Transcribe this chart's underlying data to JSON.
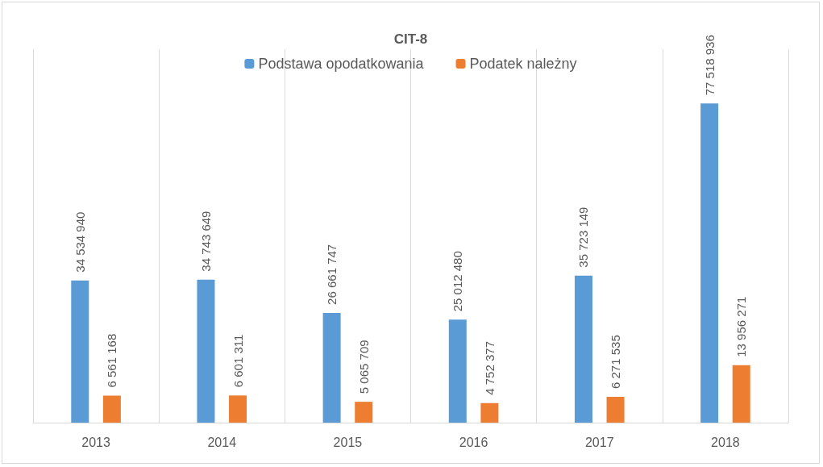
{
  "chart_data": {
    "type": "bar",
    "title": "CIT-8",
    "categories": [
      "2013",
      "2014",
      "2015",
      "2016",
      "2017",
      "2018"
    ],
    "series": [
      {
        "name": "Podstawa opodatkowania",
        "color": "#5b9bd5",
        "values": [
          34534940,
          34743649,
          26661747,
          25012480,
          35723149,
          77518936
        ],
        "value_labels": [
          "34 534 940",
          "34 743 649",
          "26 661 747",
          "25 012 480",
          "35 723 149",
          "77 518 936"
        ]
      },
      {
        "name": "Podatek należny",
        "color": "#ed7d31",
        "values": [
          6561168,
          6601311,
          5065709,
          4752377,
          6271535,
          13956271
        ],
        "value_labels": [
          "6 561 168",
          "6 601 311",
          "5 065 709",
          "4 752 377",
          "6 271 535",
          "13 956 271"
        ]
      }
    ],
    "grid": "x",
    "legend": "top"
  }
}
